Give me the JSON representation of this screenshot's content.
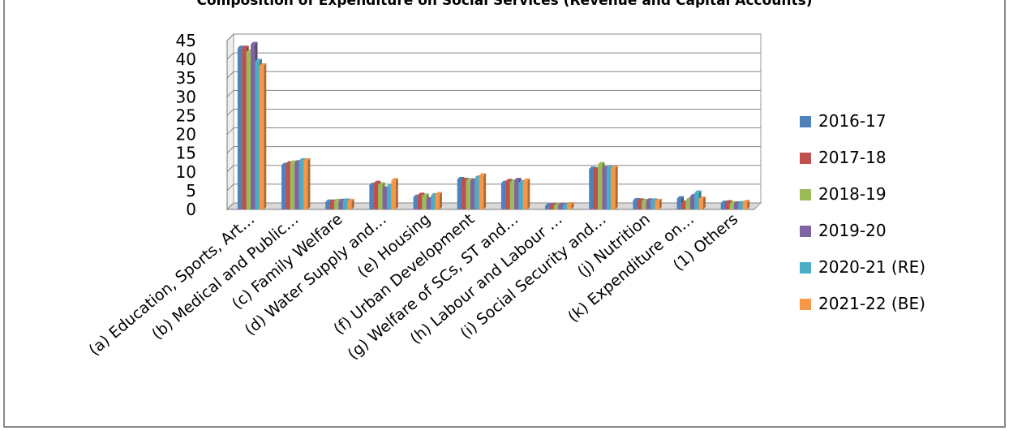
{
  "chart_data": {
    "type": "bar",
    "title": "Composition of Expenditure on Social Services (Revenue and Capital Accounts)",
    "xlabel": "",
    "ylabel": "",
    "ylim": [
      0,
      45
    ],
    "yticks": [
      0,
      5,
      10,
      15,
      20,
      25,
      30,
      35,
      40,
      45
    ],
    "grid": true,
    "legend_position": "right",
    "categories": [
      "(a) Education, Sports, Art…",
      "(b) Medical and Public…",
      "(c) Family Welfare",
      "(d) Water Supply and…",
      "(e) Housing",
      "(f) Urban Development",
      "(g) Welfare of SCs, ST and…",
      "(h) Labour and Labour …",
      "(i) Social Security and…",
      "(j) Nutrition",
      "(k) Expenditure on…",
      "(1) Others"
    ],
    "series": [
      {
        "name": "2016-17",
        "color": "#4f81bd",
        "values": [
          43.0,
          11.8,
          2.0,
          6.5,
          3.3,
          8.0,
          7.0,
          1.0,
          10.8,
          2.4,
          2.9,
          1.7
        ]
      },
      {
        "name": "2017-18",
        "color": "#c0504d",
        "values": [
          43.0,
          12.2,
          2.0,
          7.0,
          3.8,
          7.8,
          7.5,
          1.0,
          10.6,
          2.3,
          1.7,
          1.8
        ]
      },
      {
        "name": "2018-19",
        "color": "#9bbb59",
        "values": [
          42.0,
          12.4,
          2.2,
          6.6,
          3.6,
          7.7,
          7.3,
          1.0,
          12.0,
          2.2,
          2.5,
          1.6
        ]
      },
      {
        "name": "2019-20",
        "color": "#8064a2",
        "values": [
          44.0,
          12.5,
          2.2,
          5.5,
          2.6,
          7.6,
          7.8,
          1.1,
          10.9,
          2.3,
          3.5,
          1.5
        ]
      },
      {
        "name": "2020-21 (RE)",
        "color": "#4bacc6",
        "values": [
          39.5,
          13.0,
          2.3,
          6.2,
          3.7,
          8.4,
          7.2,
          1.0,
          11.0,
          2.3,
          4.4,
          1.6
        ]
      },
      {
        "name": "2021-22 (BE)",
        "color": "#f79646",
        "values": [
          38.3,
          13.0,
          2.2,
          7.7,
          4.0,
          9.0,
          7.6,
          1.3,
          11.0,
          2.2,
          2.8,
          1.9
        ]
      }
    ]
  }
}
